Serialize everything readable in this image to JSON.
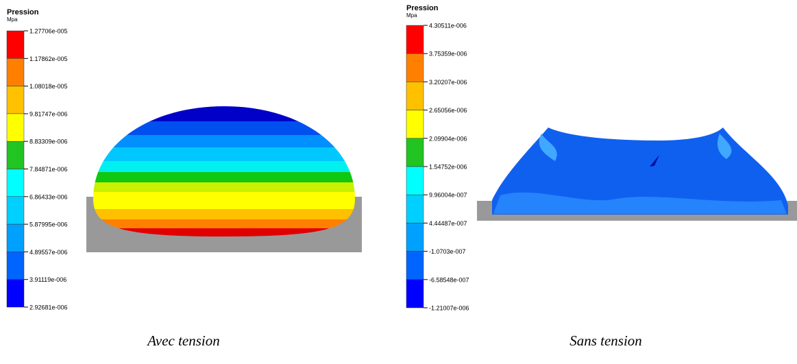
{
  "panels": [
    {
      "legend": {
        "title": "Pression",
        "unit": "Mpa",
        "ticks": [
          "1.27706e-005",
          "1.17862e-005",
          "1.08018e-005",
          "9.81747e-006",
          "8.83309e-006",
          "7.84871e-006",
          "6.86433e-006",
          "5.87995e-006",
          "4.89557e-006",
          "3.91119e-006",
          "2.92681e-006"
        ]
      },
      "caption": "Avec tension"
    },
    {
      "legend": {
        "title": "Pression",
        "unit": "Mpa",
        "ticks": [
          "4.30511e-006",
          "3.75359e-006",
          "3.20207e-006",
          "2.65056e-006",
          "2.09904e-006",
          "1.54752e-006",
          "9.96004e-007",
          "4.44487e-007",
          "-1.0703e-007",
          "-6.58548e-007",
          "-1.21007e-006"
        ]
      },
      "caption": "Sans tension"
    }
  ]
}
